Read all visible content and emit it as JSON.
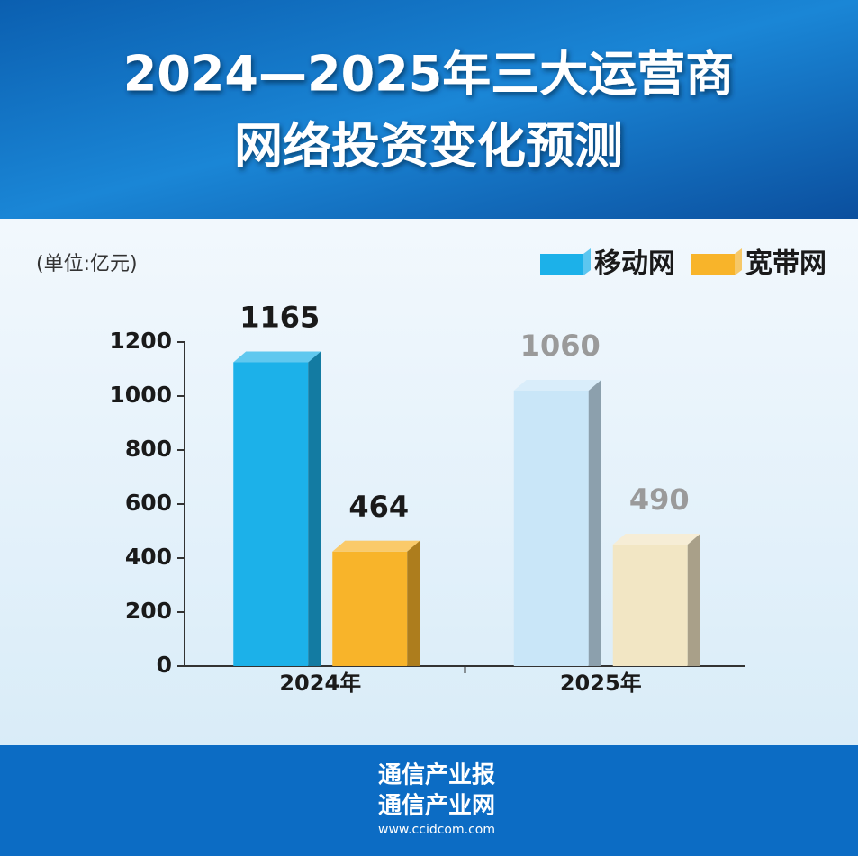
{
  "header": {
    "title_lines": [
      "2024—2025年三大运营商",
      "网络投资变化预测"
    ]
  },
  "chart_data": {
    "type": "bar",
    "unit": "(单位:亿元)",
    "categories": [
      "2024年",
      "2025年"
    ],
    "series": [
      {
        "name": "移动网",
        "color": "#1cb1e9",
        "colors": [
          "#1cb1e9",
          "#c9e6f8"
        ],
        "values": [
          1165,
          1060
        ]
      },
      {
        "name": "宽带网",
        "color": "#f8b42a",
        "colors": [
          "#f8b42a",
          "#f2e6c4"
        ],
        "values": [
          464,
          490
        ]
      }
    ],
    "ylim": [
      0,
      1200
    ],
    "yticks": [
      0,
      200,
      400,
      600,
      800,
      1000,
      1200
    ],
    "legend": "top-right"
  },
  "footer": {
    "lines": [
      "通信产业报",
      "通信产业网"
    ],
    "url": "www.ccidcom.com"
  }
}
